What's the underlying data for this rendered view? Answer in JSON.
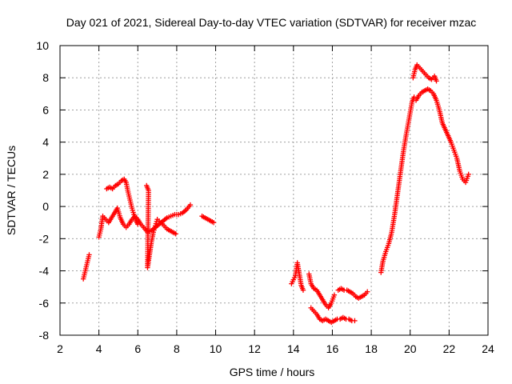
{
  "chart_data": {
    "type": "scatter",
    "title": "Day 021 of 2021, Sidereal Day-to-day VTEC variation (SDTVAR) for receiver mzac",
    "xlabel": "GPS time / hours",
    "ylabel": "SDTVAR / TECUs",
    "xlim": [
      2,
      24
    ],
    "ylim": [
      -8,
      10
    ],
    "xticks": [
      2,
      4,
      6,
      8,
      10,
      12,
      14,
      16,
      18,
      20,
      22,
      24
    ],
    "yticks": [
      -8,
      -6,
      -4,
      -2,
      0,
      2,
      4,
      6,
      8,
      10
    ],
    "grid": true,
    "marker": "plus",
    "color": "#ff0000",
    "series": [
      {
        "name": "SDTVAR",
        "segments": [
          [
            [
              3.2,
              -4.5
            ],
            [
              3.3,
              -4.0
            ],
            [
              3.4,
              -3.5
            ],
            [
              3.5,
              -3.0
            ]
          ],
          [
            [
              4.0,
              -1.9
            ],
            [
              4.1,
              -1.4
            ],
            [
              4.2,
              -0.6
            ],
            [
              4.35,
              -0.8
            ],
            [
              4.5,
              -1.0
            ],
            [
              4.65,
              -0.7
            ],
            [
              4.8,
              -0.4
            ],
            [
              4.95,
              -0.1
            ],
            [
              5.1,
              -0.7
            ],
            [
              5.25,
              -1.1
            ],
            [
              5.4,
              -1.3
            ],
            [
              5.55,
              -1.1
            ],
            [
              5.7,
              -0.8
            ],
            [
              5.85,
              -0.6
            ],
            [
              6.0,
              -0.8
            ],
            [
              6.15,
              -1.1
            ],
            [
              6.3,
              -1.3
            ],
            [
              6.5,
              -1.6
            ],
            [
              6.7,
              -1.5
            ],
            [
              6.9,
              -1.3
            ],
            [
              7.1,
              -1.1
            ],
            [
              7.3,
              -0.9
            ],
            [
              7.5,
              -0.7
            ],
            [
              7.7,
              -0.6
            ],
            [
              7.9,
              -0.5
            ],
            [
              8.1,
              -0.5
            ],
            [
              8.3,
              -0.4
            ],
            [
              8.5,
              -0.2
            ],
            [
              8.7,
              0.1
            ]
          ],
          [
            [
              4.4,
              1.1
            ],
            [
              4.55,
              1.2
            ],
            [
              4.7,
              1.1
            ],
            [
              4.85,
              1.3
            ],
            [
              5.0,
              1.4
            ],
            [
              5.15,
              1.6
            ],
            [
              5.3,
              1.7
            ],
            [
              5.4,
              1.5
            ],
            [
              5.5,
              0.9
            ],
            [
              5.6,
              0.4
            ],
            [
              5.7,
              -0.1
            ],
            [
              5.8,
              -0.5
            ],
            [
              5.9,
              -0.9
            ],
            [
              6.0,
              -1.1
            ]
          ],
          [
            [
              6.45,
              1.3
            ],
            [
              6.55,
              1.0
            ],
            [
              6.5,
              -3.8
            ],
            [
              6.6,
              -3.0
            ],
            [
              6.7,
              -2.2
            ],
            [
              6.8,
              -1.6
            ],
            [
              6.9,
              -1.2
            ],
            [
              7.0,
              -0.8
            ],
            [
              7.1,
              -0.9
            ],
            [
              7.2,
              -1.0
            ],
            [
              7.35,
              -1.2
            ],
            [
              7.5,
              -1.4
            ],
            [
              7.65,
              -1.5
            ],
            [
              7.8,
              -1.6
            ],
            [
              7.95,
              -1.7
            ]
          ],
          [
            [
              9.3,
              -0.6
            ],
            [
              9.45,
              -0.7
            ],
            [
              9.6,
              -0.8
            ],
            [
              9.75,
              -0.9
            ],
            [
              9.9,
              -1.0
            ]
          ],
          [
            [
              13.9,
              -4.8
            ],
            [
              14.1,
              -4.3
            ],
            [
              14.2,
              -3.5
            ],
            [
              14.3,
              -4.2
            ],
            [
              14.4,
              -4.9
            ],
            [
              14.5,
              -5.2
            ]
          ],
          [
            [
              14.8,
              -4.2
            ],
            [
              14.9,
              -4.8
            ],
            [
              15.05,
              -5.1
            ],
            [
              15.2,
              -5.2
            ],
            [
              15.35,
              -5.5
            ],
            [
              15.5,
              -5.8
            ],
            [
              15.65,
              -6.1
            ],
            [
              15.8,
              -6.3
            ],
            [
              15.95,
              -6.0
            ],
            [
              16.1,
              -5.5
            ]
          ],
          [
            [
              14.9,
              -6.3
            ],
            [
              15.05,
              -6.5
            ],
            [
              15.2,
              -6.7
            ],
            [
              15.35,
              -7.0
            ],
            [
              15.5,
              -7.1
            ],
            [
              15.65,
              -7.0
            ],
            [
              15.8,
              -7.1
            ],
            [
              15.95,
              -7.2
            ],
            [
              16.1,
              -7.1
            ],
            [
              16.25,
              -7.0
            ],
            [
              16.4,
              -7.0
            ],
            [
              16.55,
              -6.9
            ],
            [
              16.7,
              -7.0
            ],
            [
              16.85,
              -7.0
            ],
            [
              17.0,
              -7.1
            ],
            [
              17.15,
              -7.1
            ]
          ],
          [
            [
              16.3,
              -5.2
            ],
            [
              16.45,
              -5.1
            ],
            [
              16.6,
              -5.2
            ],
            [
              16.75,
              -5.2
            ],
            [
              16.9,
              -5.3
            ],
            [
              17.05,
              -5.4
            ],
            [
              17.2,
              -5.6
            ],
            [
              17.35,
              -5.7
            ],
            [
              17.5,
              -5.6
            ],
            [
              17.65,
              -5.5
            ],
            [
              17.8,
              -5.3
            ]
          ],
          [
            [
              18.5,
              -4.1
            ],
            [
              18.6,
              -3.4
            ],
            [
              18.75,
              -2.8
            ],
            [
              18.9,
              -2.3
            ],
            [
              19.05,
              -1.6
            ],
            [
              19.2,
              -0.5
            ],
            [
              19.35,
              0.8
            ],
            [
              19.5,
              2.1
            ],
            [
              19.65,
              3.4
            ],
            [
              19.8,
              4.5
            ],
            [
              19.95,
              5.5
            ],
            [
              20.1,
              6.5
            ],
            [
              20.2,
              6.8
            ]
          ],
          [
            [
              20.15,
              8.0
            ],
            [
              20.25,
              8.5
            ],
            [
              20.35,
              8.8
            ],
            [
              20.5,
              8.6
            ],
            [
              20.65,
              8.4
            ],
            [
              20.8,
              8.2
            ],
            [
              20.95,
              8.0
            ],
            [
              21.1,
              7.9
            ],
            [
              21.25,
              8.1
            ],
            [
              21.35,
              7.8
            ]
          ],
          [
            [
              20.3,
              6.6
            ],
            [
              20.45,
              6.9
            ],
            [
              20.6,
              7.1
            ],
            [
              20.75,
              7.2
            ],
            [
              20.9,
              7.3
            ],
            [
              21.05,
              7.2
            ],
            [
              21.2,
              7.0
            ],
            [
              21.35,
              6.6
            ],
            [
              21.5,
              6.0
            ],
            [
              21.65,
              5.2
            ],
            [
              21.8,
              4.8
            ],
            [
              21.95,
              4.4
            ],
            [
              22.1,
              4.0
            ],
            [
              22.25,
              3.5
            ],
            [
              22.4,
              3.0
            ],
            [
              22.55,
              2.2
            ],
            [
              22.7,
              1.7
            ],
            [
              22.85,
              1.5
            ],
            [
              23.0,
              2.0
            ]
          ]
        ]
      }
    ]
  }
}
